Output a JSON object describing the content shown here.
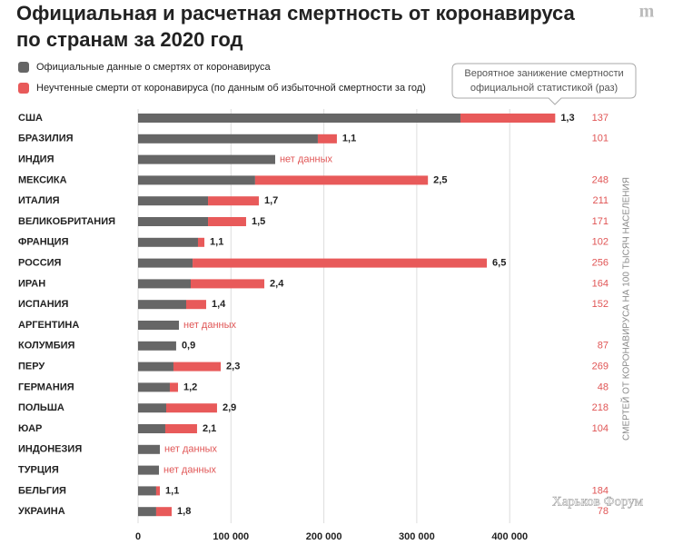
{
  "chart_data": {
    "type": "stacked-bar-horizontal",
    "title_lines": [
      "Официальная и расчетная смертность от коронавируса",
      "по странам за 2020 год"
    ],
    "categories": [
      "США",
      "БРАЗИЛИЯ",
      "ИНДИЯ",
      "МЕКСИКА",
      "ИТАЛИЯ",
      "ВЕЛИКОБРИТАНИЯ",
      "ФРАНЦИЯ",
      "РОССИЯ",
      "ИРАН",
      "ИСПАНИЯ",
      "АРГЕНТИНА",
      "КОЛУМБИЯ",
      "ПЕРУ",
      "ГЕРМАНИЯ",
      "ПОЛЬША",
      "ЮАР",
      "ИНДОНЕЗИЯ",
      "ТУРЦИЯ",
      "БЕЛЬГИЯ",
      "УКРАИНА"
    ],
    "series": [
      {
        "name": "Официальные данные о смертях от коронавируса",
        "color": "#666666",
        "values": [
          347000,
          193500,
          147600,
          126000,
          75300,
          75300,
          64500,
          58700,
          56700,
          51800,
          44000,
          41000,
          38100,
          34200,
          30300,
          29300,
          23500,
          22500,
          19500,
          19500
        ]
      },
      {
        "name": "Неучтенные смерти от коронавируса (по данным об избыточной смертности за год)",
        "color": "#e85a5a",
        "values": [
          102000,
          20500,
          null,
          186000,
          54700,
          41000,
          6900,
          316700,
          79200,
          21500,
          null,
          0,
          50900,
          8800,
          54700,
          34200,
          null,
          null,
          4000,
          16700
        ]
      }
    ],
    "ratio_title_lines": [
      "Вероятное занижение смертности",
      "официальной статистикой (раз)"
    ],
    "ratios": [
      1.3,
      1.1,
      null,
      2.5,
      1.7,
      1.5,
      1.1,
      6.5,
      2.4,
      1.4,
      null,
      0.9,
      2.3,
      1.2,
      2.9,
      2.1,
      null,
      null,
      1.1,
      1.8
    ],
    "ratio_labels": [
      "1,3",
      "1,1",
      null,
      "2,5",
      "1,7",
      "1,5",
      "1,1",
      "6,5",
      "2,4",
      "1,4",
      null,
      "0,9",
      "2,3",
      "1,2",
      "2,9",
      "2,1",
      null,
      null,
      "1,1",
      "1,8"
    ],
    "no_data_label": "нет данных",
    "per100k_label": "СМЕРТЕЙ ОТ КОРОНАВИРУСА НА 100 ТЫСЯЧ НАСЕЛЕНИЯ",
    "per100k": [
      137,
      101,
      null,
      248,
      211,
      171,
      102,
      256,
      164,
      152,
      null,
      87,
      269,
      48,
      218,
      104,
      null,
      null,
      184,
      78
    ],
    "xlim": [
      0,
      430000
    ],
    "xticks": [
      0,
      {
        "value": 100000,
        "label": "100 000"
      },
      {
        "value": 200000,
        "label": "200 000"
      },
      {
        "value": 300000,
        "label": "300 000"
      },
      {
        "value": 400000,
        "label": "400 000"
      }
    ],
    "grid": true,
    "watermark": "Харьков Форум"
  }
}
